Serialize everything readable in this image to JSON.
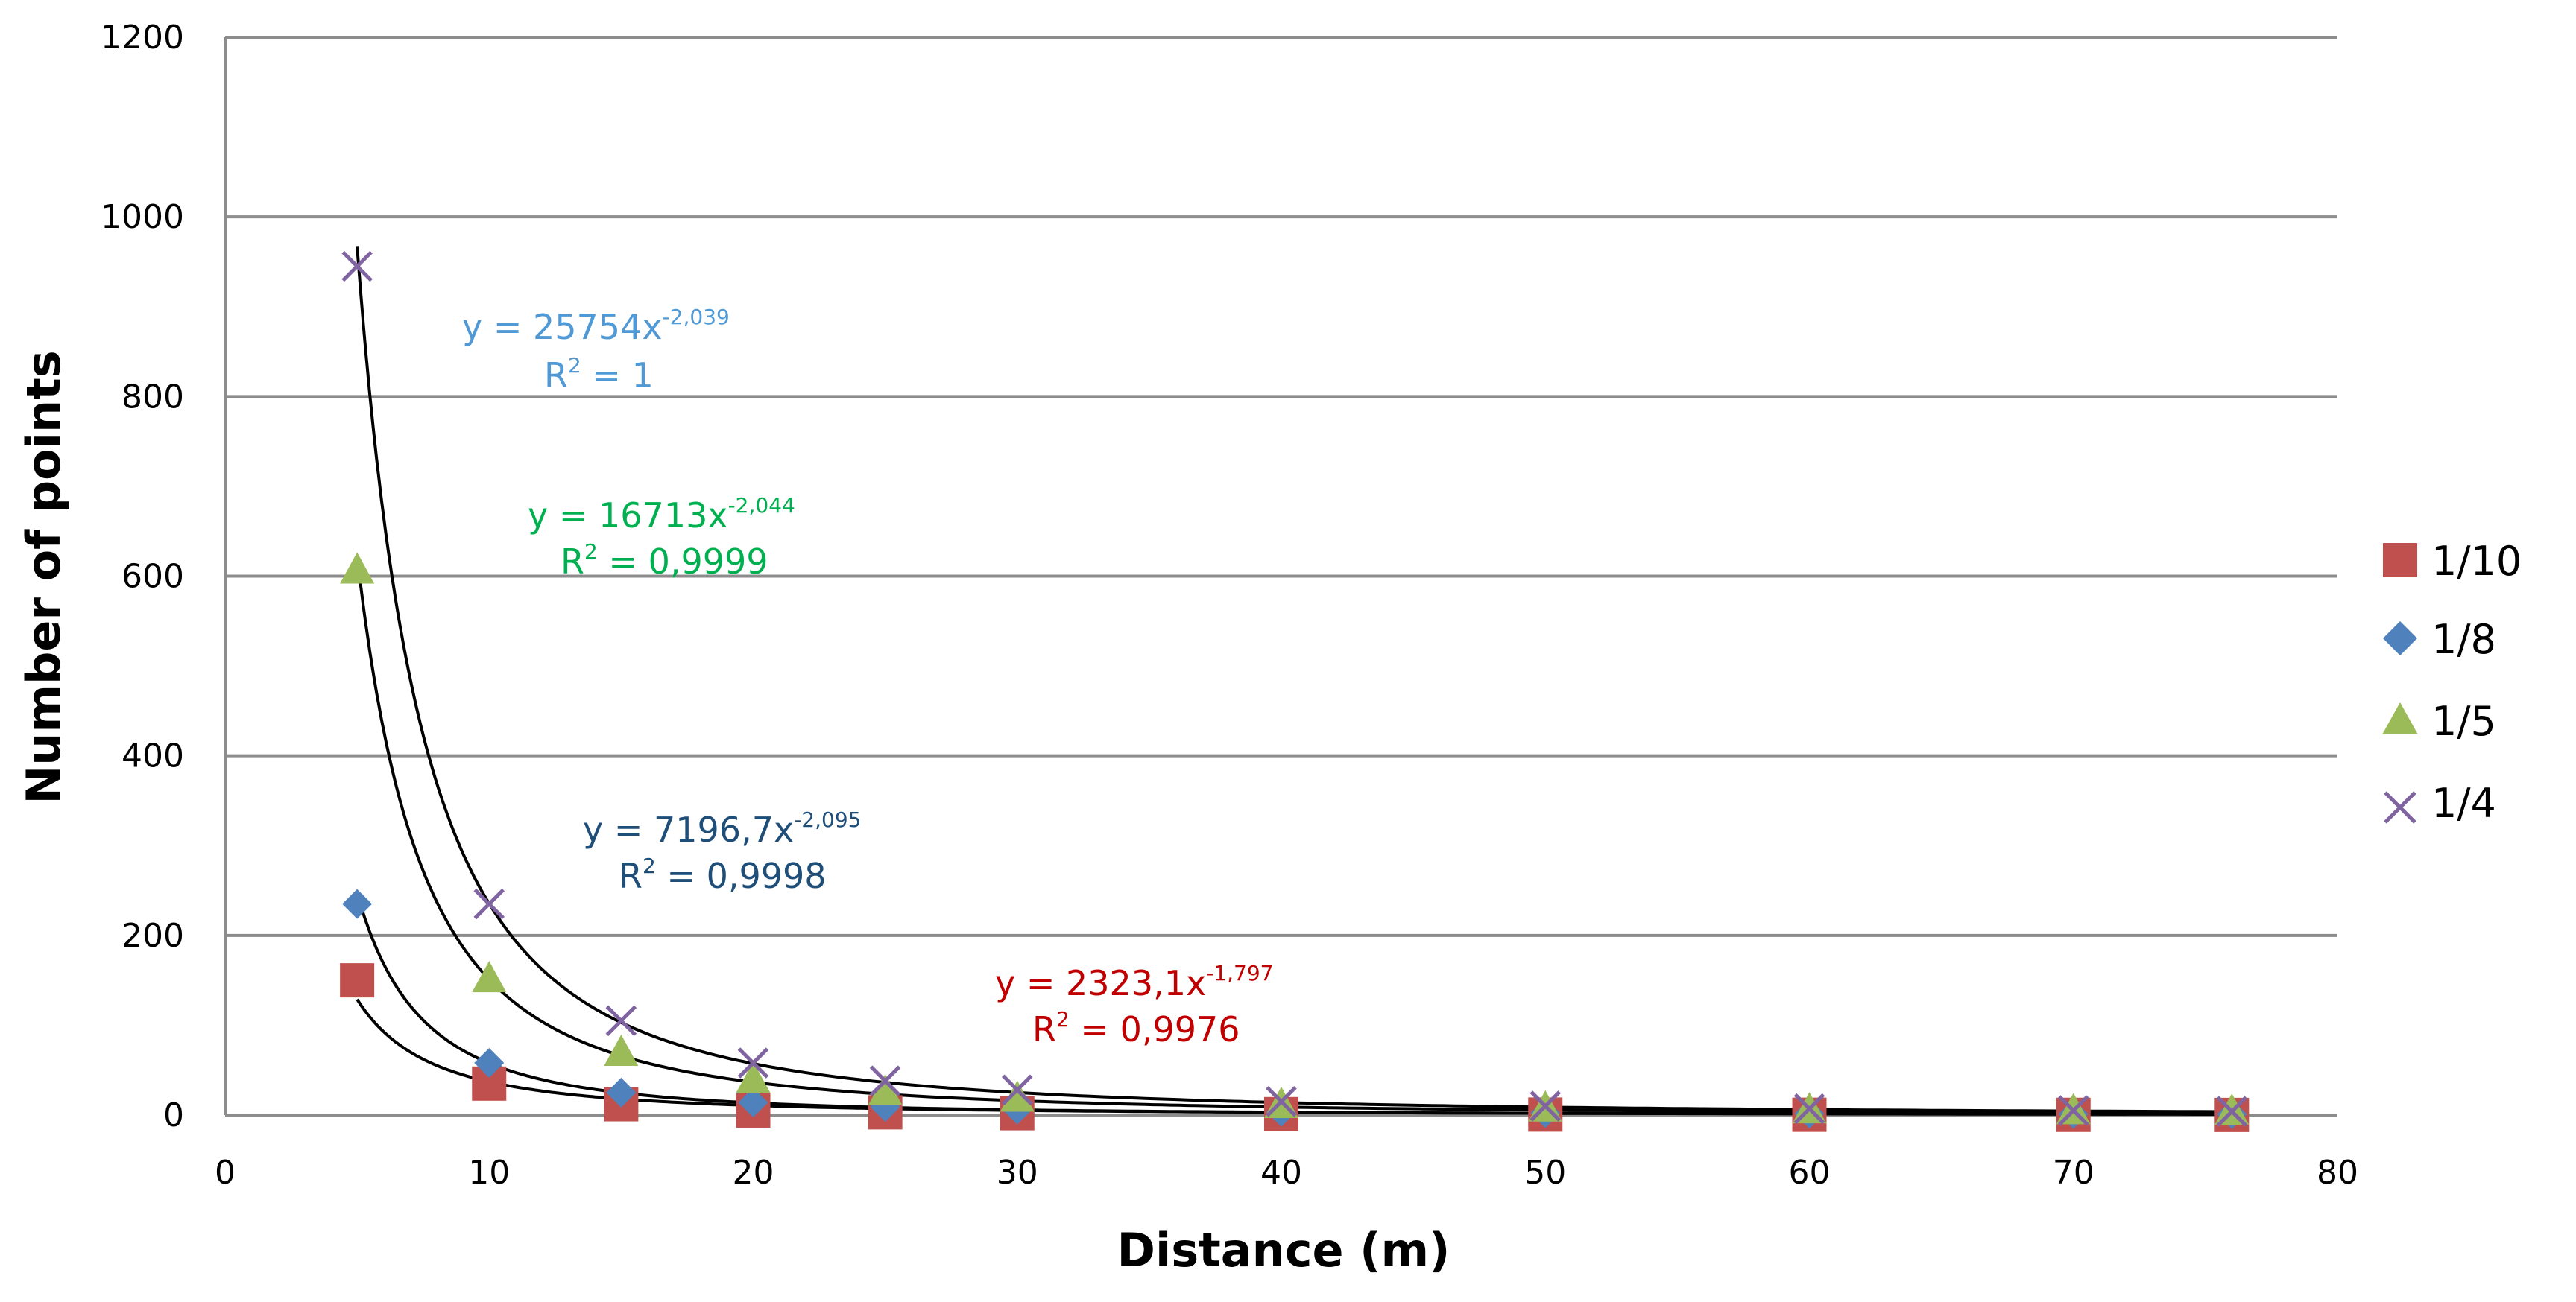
{
  "chart_data": {
    "type": "scatter",
    "xlabel": "Distance (m)",
    "ylabel": "Number of points",
    "xlim": [
      0,
      80
    ],
    "ylim": [
      0,
      1200
    ],
    "x_ticks": [
      "0",
      "10",
      "20",
      "30",
      "40",
      "50",
      "60",
      "70",
      "80"
    ],
    "y_ticks": [
      "0",
      "200",
      "400",
      "600",
      "800",
      "1000",
      "1200"
    ],
    "grid": "horizontal",
    "legend_position": "right",
    "series": [
      {
        "name": "1/10",
        "marker": "square",
        "color": "#c0504d",
        "x": [
          5,
          10,
          15,
          20,
          25,
          30,
          40,
          50,
          60,
          70,
          76
        ],
        "y": [
          150,
          35,
          12,
          5,
          3,
          2,
          1,
          0.5,
          0.3,
          0.2,
          0.1
        ],
        "trend": {
          "a": 2323.1,
          "b": -1.797,
          "x_start": 5,
          "x_end": 72
        }
      },
      {
        "name": "1/8",
        "marker": "diamond",
        "color": "#4f81bd",
        "x": [
          5,
          10,
          15,
          20,
          25,
          30,
          40,
          50,
          60,
          70,
          76
        ],
        "y": [
          235,
          58,
          25,
          14,
          9,
          6,
          3.5,
          2.2,
          1.5,
          1,
          0.9
        ],
        "trend": {
          "a": 7196.7,
          "b": -2.095,
          "x_start": 5,
          "x_end": 76
        }
      },
      {
        "name": "1/5",
        "marker": "triangle",
        "color": "#9bbb59",
        "x": [
          5,
          10,
          15,
          20,
          25,
          30,
          40,
          50,
          60,
          70,
          76
        ],
        "y": [
          605,
          150,
          68,
          38,
          24,
          17,
          10,
          6,
          4,
          3,
          2.5
        ],
        "trend": {
          "a": 16713,
          "b": -2.044,
          "x_start": 5,
          "x_end": 76
        }
      },
      {
        "name": "1/4",
        "marker": "x",
        "color": "#8064a2",
        "x": [
          5,
          10,
          15,
          20,
          25,
          30,
          40,
          50,
          60,
          70,
          76
        ],
        "y": [
          945,
          235,
          105,
          58,
          38,
          28,
          15,
          10,
          7,
          5,
          4
        ],
        "trend": {
          "a": 25754,
          "b": -2.039,
          "x_start": 5,
          "x_end": 76
        }
      }
    ],
    "annotations": [
      {
        "series": "1/4",
        "color": "#4f9ad6",
        "eq_main": "y = 25754x",
        "eq_exp": "-2,039",
        "r2_label": "R",
        "r2_exp": "2",
        "r2_value": " = 1"
      },
      {
        "series": "1/5",
        "color": "#00b050",
        "eq_main": "y = 16713x",
        "eq_exp": "-2,044",
        "r2_label": "R",
        "r2_exp": "2",
        "r2_value": " = 0,9999"
      },
      {
        "series": "1/8",
        "color": "#1f4e79",
        "eq_main": "y = 7196,7x",
        "eq_exp": "-2,095",
        "r2_label": "R",
        "r2_exp": "2",
        "r2_value": " = 0,9998"
      },
      {
        "series": "1/10",
        "color": "#c00000",
        "eq_main": "y = 2323,1x",
        "eq_exp": "-1,797",
        "r2_label": "R",
        "r2_exp": "2",
        "r2_value": " = 0,9976"
      }
    ]
  }
}
